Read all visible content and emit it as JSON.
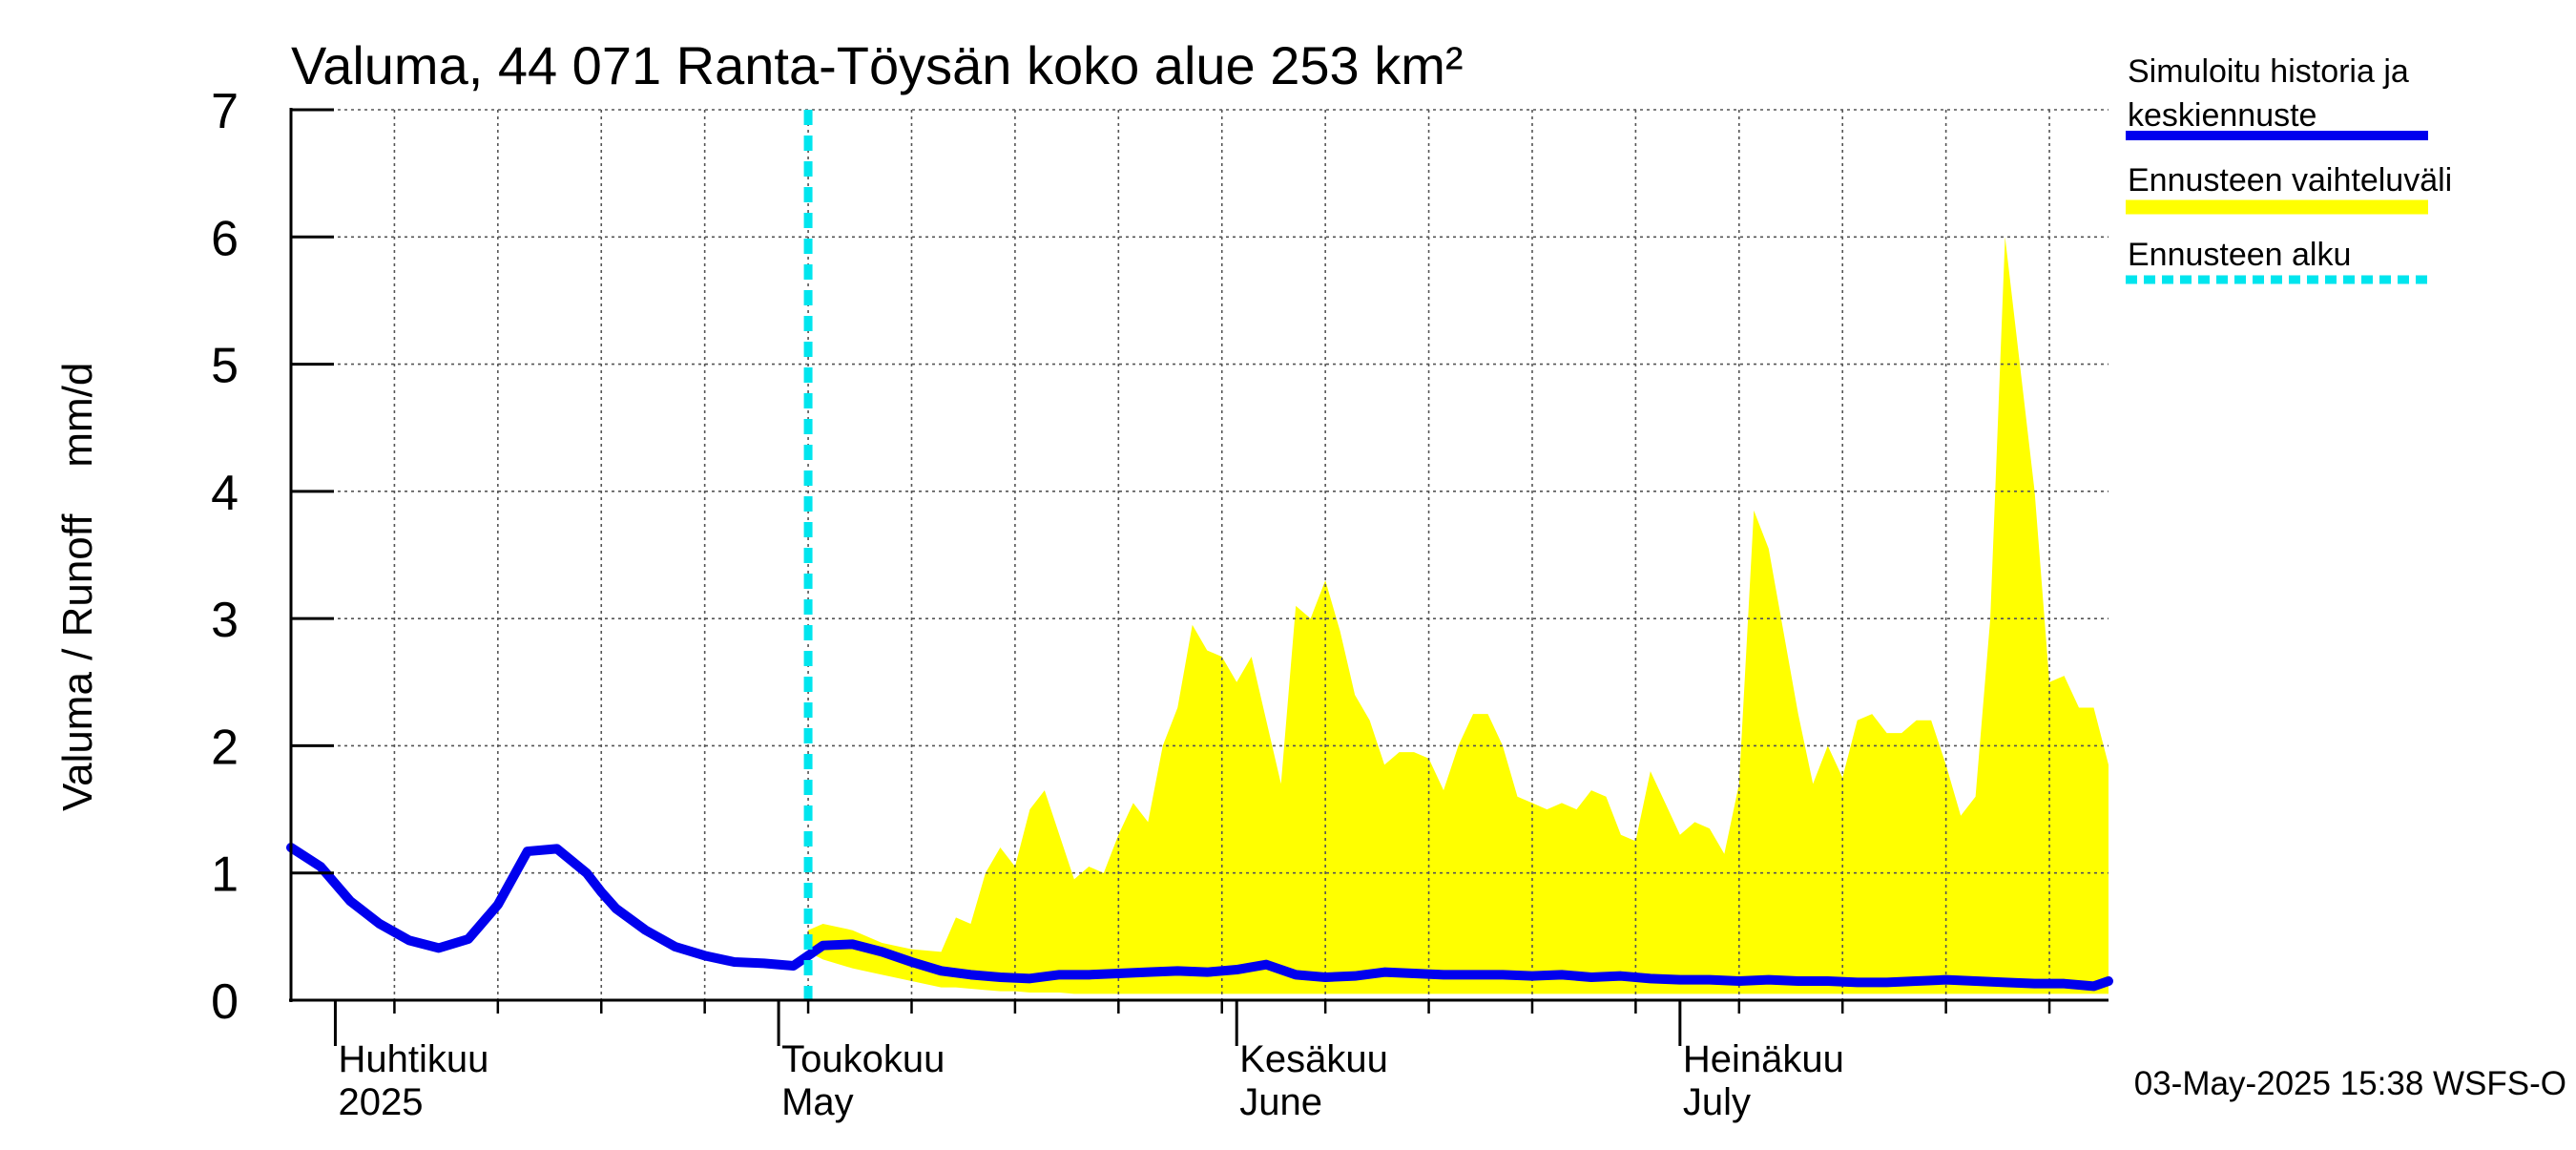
{
  "chart_data": {
    "type": "area",
    "title": "Valuma, 44 071 Ranta-Töysän koko alue 253 km²",
    "ylabel": "Valuma / Runoff    mm/d",
    "ylim": [
      0,
      7
    ],
    "yticks": [
      0,
      1,
      2,
      3,
      4,
      5,
      6,
      7
    ],
    "xlim": [
      "2025-03-29",
      "2025-07-30"
    ],
    "month_labels": [
      {
        "date": "2025-04-01",
        "line1": "Huhtikuu",
        "line2": "2025"
      },
      {
        "date": "2025-05-01",
        "line1": "Toukokuu",
        "line2": "May"
      },
      {
        "date": "2025-06-01",
        "line1": "Kesäkuu",
        "line2": "June"
      },
      {
        "date": "2025-07-01",
        "line1": "Heinäkuu",
        "line2": "July"
      }
    ],
    "grid": true,
    "legend_position": "right",
    "footer": "03-May-2025 15:38 WSFS-O",
    "forecast_start": "2025-05-03",
    "colors": {
      "simulated": "#0000ee",
      "range": "#ffff00",
      "forecast_start": "#00e5ee"
    },
    "series": [
      {
        "name": "Simuloitu historia ja keskiennuste",
        "style": "line",
        "x": [
          "2025-03-29",
          "2025-03-31",
          "2025-04-02",
          "2025-04-04",
          "2025-04-06",
          "2025-04-08",
          "2025-04-10",
          "2025-04-12",
          "2025-04-14",
          "2025-04-16",
          "2025-04-18",
          "2025-04-19",
          "2025-04-20",
          "2025-04-22",
          "2025-04-24",
          "2025-04-26",
          "2025-04-28",
          "2025-04-30",
          "2025-05-02",
          "2025-05-04",
          "2025-05-06",
          "2025-05-08",
          "2025-05-10",
          "2025-05-12",
          "2025-05-14",
          "2025-05-16",
          "2025-05-18",
          "2025-05-20",
          "2025-05-22",
          "2025-05-24",
          "2025-05-26",
          "2025-05-28",
          "2025-05-30",
          "2025-06-01",
          "2025-06-03",
          "2025-06-05",
          "2025-06-07",
          "2025-06-09",
          "2025-06-11",
          "2025-06-13",
          "2025-06-15",
          "2025-06-17",
          "2025-06-19",
          "2025-06-21",
          "2025-06-23",
          "2025-06-25",
          "2025-06-27",
          "2025-06-29",
          "2025-07-01",
          "2025-07-03",
          "2025-07-05",
          "2025-07-07",
          "2025-07-09",
          "2025-07-11",
          "2025-07-13",
          "2025-07-15",
          "2025-07-17",
          "2025-07-19",
          "2025-07-21",
          "2025-07-23",
          "2025-07-25",
          "2025-07-27",
          "2025-07-29",
          "2025-07-30"
        ],
        "values": [
          1.2,
          1.05,
          0.78,
          0.6,
          0.47,
          0.41,
          0.48,
          0.75,
          1.17,
          1.19,
          1.0,
          0.85,
          0.72,
          0.55,
          0.42,
          0.35,
          0.3,
          0.29,
          0.27,
          0.43,
          0.44,
          0.38,
          0.3,
          0.23,
          0.2,
          0.18,
          0.17,
          0.2,
          0.2,
          0.21,
          0.22,
          0.23,
          0.22,
          0.24,
          0.28,
          0.2,
          0.18,
          0.19,
          0.22,
          0.21,
          0.2,
          0.2,
          0.2,
          0.19,
          0.2,
          0.18,
          0.19,
          0.17,
          0.16,
          0.16,
          0.15,
          0.16,
          0.15,
          0.15,
          0.14,
          0.14,
          0.15,
          0.16,
          0.15,
          0.14,
          0.13,
          0.13,
          0.11,
          0.15
        ]
      },
      {
        "name": "Ennusteen vaihteluväli",
        "style": "band",
        "x": [
          "2025-05-03",
          "2025-05-04",
          "2025-05-06",
          "2025-05-08",
          "2025-05-10",
          "2025-05-12",
          "2025-05-13",
          "2025-05-14",
          "2025-05-15",
          "2025-05-16",
          "2025-05-17",
          "2025-05-18",
          "2025-05-19",
          "2025-05-20",
          "2025-05-21",
          "2025-05-22",
          "2025-05-23",
          "2025-05-24",
          "2025-05-25",
          "2025-05-26",
          "2025-05-27",
          "2025-05-28",
          "2025-05-29",
          "2025-05-30",
          "2025-05-31",
          "2025-06-01",
          "2025-06-02",
          "2025-06-03",
          "2025-06-04",
          "2025-06-05",
          "2025-06-06",
          "2025-06-07",
          "2025-06-08",
          "2025-06-09",
          "2025-06-10",
          "2025-06-11",
          "2025-06-12",
          "2025-06-13",
          "2025-06-14",
          "2025-06-15",
          "2025-06-16",
          "2025-06-17",
          "2025-06-18",
          "2025-06-19",
          "2025-06-20",
          "2025-06-21",
          "2025-06-22",
          "2025-06-23",
          "2025-06-24",
          "2025-06-25",
          "2025-06-26",
          "2025-06-27",
          "2025-06-28",
          "2025-06-29",
          "2025-06-30",
          "2025-07-01",
          "2025-07-02",
          "2025-07-03",
          "2025-07-04",
          "2025-07-05",
          "2025-07-06",
          "2025-07-07",
          "2025-07-08",
          "2025-07-09",
          "2025-07-10",
          "2025-07-11",
          "2025-07-12",
          "2025-07-13",
          "2025-07-14",
          "2025-07-15",
          "2025-07-16",
          "2025-07-17",
          "2025-07-18",
          "2025-07-19",
          "2025-07-20",
          "2025-07-21",
          "2025-07-22",
          "2025-07-23",
          "2025-07-24",
          "2025-07-25",
          "2025-07-26",
          "2025-07-27",
          "2025-07-28",
          "2025-07-29",
          "2025-07-30"
        ],
        "upper": [
          0.55,
          0.6,
          0.55,
          0.45,
          0.4,
          0.38,
          0.65,
          0.6,
          1.0,
          1.2,
          1.05,
          1.5,
          1.65,
          1.3,
          0.95,
          1.05,
          1.0,
          1.3,
          1.55,
          1.4,
          2.0,
          2.3,
          2.95,
          2.75,
          2.7,
          2.5,
          2.7,
          2.2,
          1.7,
          3.1,
          3.0,
          3.3,
          2.9,
          2.4,
          2.2,
          1.85,
          1.95,
          1.95,
          1.9,
          1.65,
          2.0,
          2.25,
          2.25,
          2.0,
          1.6,
          1.55,
          1.5,
          1.55,
          1.5,
          1.65,
          1.6,
          1.3,
          1.25,
          1.8,
          1.55,
          1.3,
          1.4,
          1.35,
          1.15,
          1.7,
          3.85,
          3.55,
          2.9,
          2.25,
          1.7,
          2.0,
          1.75,
          2.2,
          2.25,
          2.1,
          2.1,
          2.2,
          2.2,
          1.85,
          1.45,
          1.6,
          3.0,
          6.0,
          5.0,
          4.0,
          2.5,
          2.55,
          2.3,
          2.3,
          1.85
        ],
        "lower": [
          0.38,
          0.32,
          0.25,
          0.2,
          0.15,
          0.1,
          0.1,
          0.09,
          0.08,
          0.07,
          0.07,
          0.06,
          0.06,
          0.06,
          0.05,
          0.05,
          0.05,
          0.05,
          0.05,
          0.05,
          0.05,
          0.05,
          0.05,
          0.05,
          0.05,
          0.05,
          0.05,
          0.05,
          0.05,
          0.05,
          0.05,
          0.05,
          0.05,
          0.05,
          0.05,
          0.05,
          0.05,
          0.05,
          0.05,
          0.05,
          0.05,
          0.05,
          0.05,
          0.05,
          0.05,
          0.05,
          0.05,
          0.05,
          0.05,
          0.05,
          0.05,
          0.05,
          0.05,
          0.05,
          0.05,
          0.05,
          0.05,
          0.05,
          0.05,
          0.05,
          0.05,
          0.05,
          0.05,
          0.05,
          0.05,
          0.05,
          0.05,
          0.05,
          0.05,
          0.05,
          0.05,
          0.05,
          0.05,
          0.05,
          0.05,
          0.05,
          0.05,
          0.05,
          0.05,
          0.05,
          0.05,
          0.05,
          0.05,
          0.05,
          0.05
        ]
      },
      {
        "name": "Ennusteen alku",
        "style": "vline",
        "x": [
          "2025-05-03"
        ]
      }
    ]
  }
}
